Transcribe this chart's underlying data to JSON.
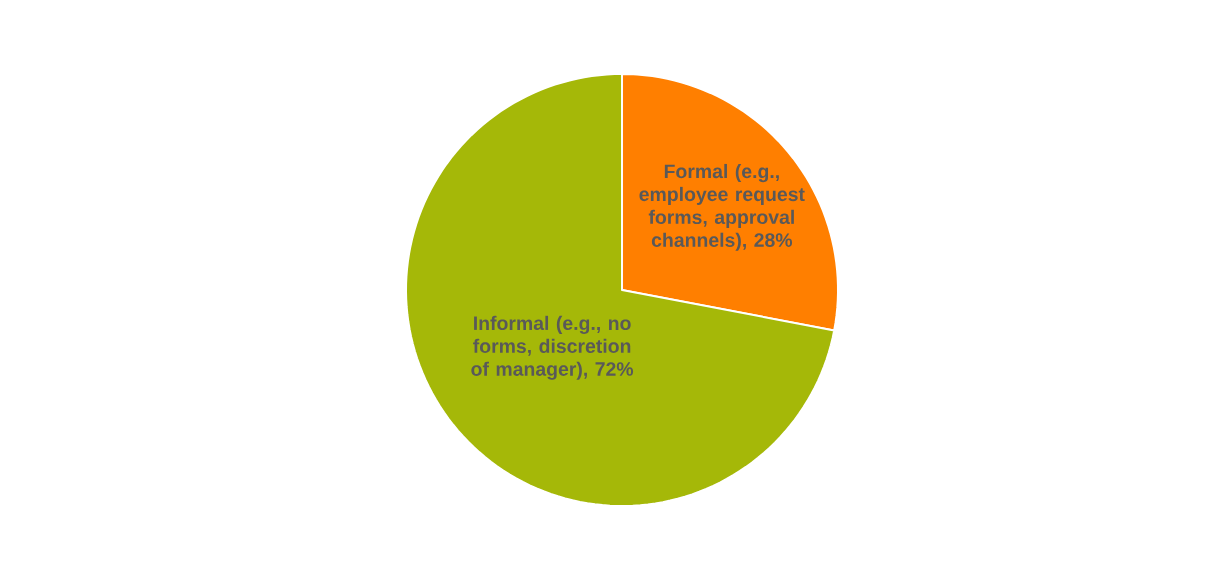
{
  "chart_data": {
    "type": "pie",
    "categories": [
      "Formal (e.g., employee request forms, approval channels)",
      "Informal (e.g., no forms, discretion of manager)"
    ],
    "values": [
      28,
      72
    ],
    "value_labels": [
      ", 28%",
      ", 72%"
    ],
    "colors": [
      "#ff7f00",
      "#a5b808"
    ]
  }
}
